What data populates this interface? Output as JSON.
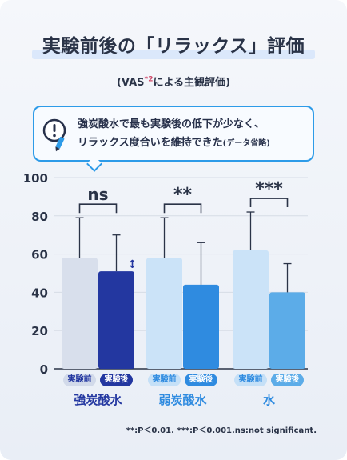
{
  "title": "実験前後の「リラックス」評価",
  "subtitle_main": "(VAS",
  "subtitle_sup": "*2",
  "subtitle_tail": "による主観評価)",
  "callout": {
    "line1": "強炭酸水で最も実験後の低下が少なく、",
    "line2": "リラックス度合いを維持できた",
    "line2_small": "(データ省略)"
  },
  "footnote": "**:P＜0.01. ***:P＜0.001.ns:not significant.",
  "colors": {
    "before_strong": "#d8dfec",
    "after_strong": "#2337a0",
    "before_weak": "#cbe3f8",
    "after_weak": "#2f8be0",
    "before_water": "#cbe3f8",
    "after_water": "#5cace8",
    "accent": "#2d9be8",
    "text": "#2a3347"
  },
  "chart_data": {
    "type": "bar",
    "ylim": [
      0,
      100
    ],
    "yticks": [
      "0",
      "20",
      "40",
      "60",
      "80",
      "100"
    ],
    "groups": [
      {
        "name": "強炭酸水",
        "labels": [
          "実験前",
          "実験後"
        ],
        "values": [
          58,
          51
        ],
        "error_upper": [
          79,
          70
        ],
        "significance": "ns",
        "arrow": "↕"
      },
      {
        "name": "弱炭酸水",
        "labels": [
          "実験前",
          "実験後"
        ],
        "values": [
          58,
          44
        ],
        "error_upper": [
          79,
          66
        ],
        "significance": "**"
      },
      {
        "name": "水",
        "labels": [
          "実験前",
          "実験後"
        ],
        "values": [
          62,
          40
        ],
        "error_upper": [
          82,
          55
        ],
        "significance": "***"
      }
    ]
  }
}
